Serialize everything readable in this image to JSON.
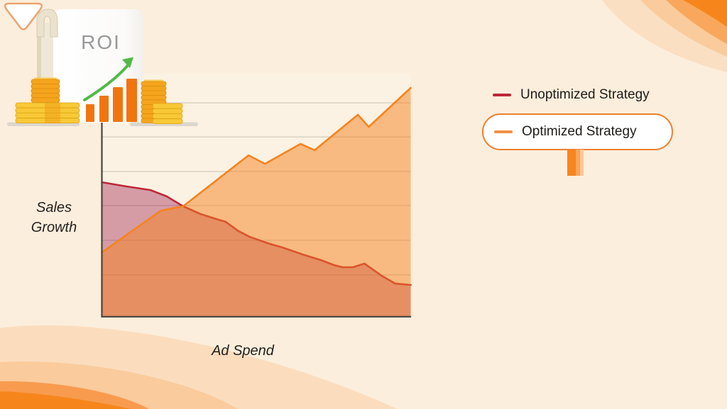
{
  "page": {
    "background": "#FCEEDC"
  },
  "chart": {
    "y_axis_label": "Sales\nGrowth",
    "x_axis_label": "Ad Spend"
  },
  "legend": {
    "items": [
      {
        "label": "Unoptimized Strategy",
        "color": "#BE2738",
        "boxed": false
      },
      {
        "label": "Optimized Strategy",
        "color": "#F5831F",
        "boxed": true
      }
    ]
  },
  "roi_graphic": {
    "label": "ROI"
  },
  "palette": {
    "background": "#FCEEDC",
    "corner_orange_bright": "#F6861C",
    "corner_orange_mid": "#F8A75C",
    "corner_orange_light": "#FACB9C",
    "corner_orange_faint": "#FBDFC2",
    "unoptimized_line": "#BE2738",
    "optimized_line": "#F5831F",
    "overlap_fill": "#E88B5E",
    "mauve_fill": "#D69AA3",
    "light_orange_fill": "#F9B67E",
    "gridline": "#CBC1B4",
    "axis": "#4A443C",
    "coin_gold": "#F5A41E",
    "coin_yellow": "#F8C837",
    "bar_orange": "#F0750F",
    "arrow_green": "#53B848",
    "roi_text_gray": "#99989A"
  },
  "chart_data": {
    "type": "area",
    "title": "",
    "xlabel": "Ad Spend",
    "ylabel": "Sales Growth",
    "axes_note": "conceptual axes with no numeric tick labels; x and y given in relative units 0-100",
    "grid": true,
    "legend_position": "right",
    "gridlines_y": [
      88,
      74,
      59.7,
      45.7,
      31.4,
      17.1
    ],
    "series": [
      {
        "name": "Unoptimized Strategy",
        "color": "#BE2738",
        "fill": "rgba(152,17,68,0.38)",
        "x": [
          0,
          7.8,
          15.7,
          21.0,
          26.3,
          32.0,
          37.6,
          40.1,
          44.2,
          47.9,
          53.7,
          58.3,
          65.2,
          71.0,
          75.1,
          77.9,
          81.3,
          85.0,
          90.6,
          94.9,
          100
        ],
        "y": [
          55.3,
          53.6,
          52.1,
          49.5,
          45.4,
          42.2,
          39.9,
          39.0,
          35.2,
          32.8,
          30.2,
          28.5,
          25.5,
          23.2,
          21.2,
          20.3,
          20.3,
          21.8,
          16.8,
          13.6,
          13.0
        ]
      },
      {
        "name": "Optimized Strategy",
        "color": "#F5831F",
        "fill": "rgba(245,130,32,0.5)",
        "x": [
          0,
          19.1,
          26.3,
          47.5,
          52.8,
          64.3,
          68.9,
          82.9,
          86.4,
          100
        ],
        "y": [
          26.4,
          43.6,
          45.4,
          66.4,
          62.9,
          71.1,
          68.5,
          83.1,
          78.1,
          94.2
        ]
      }
    ]
  }
}
